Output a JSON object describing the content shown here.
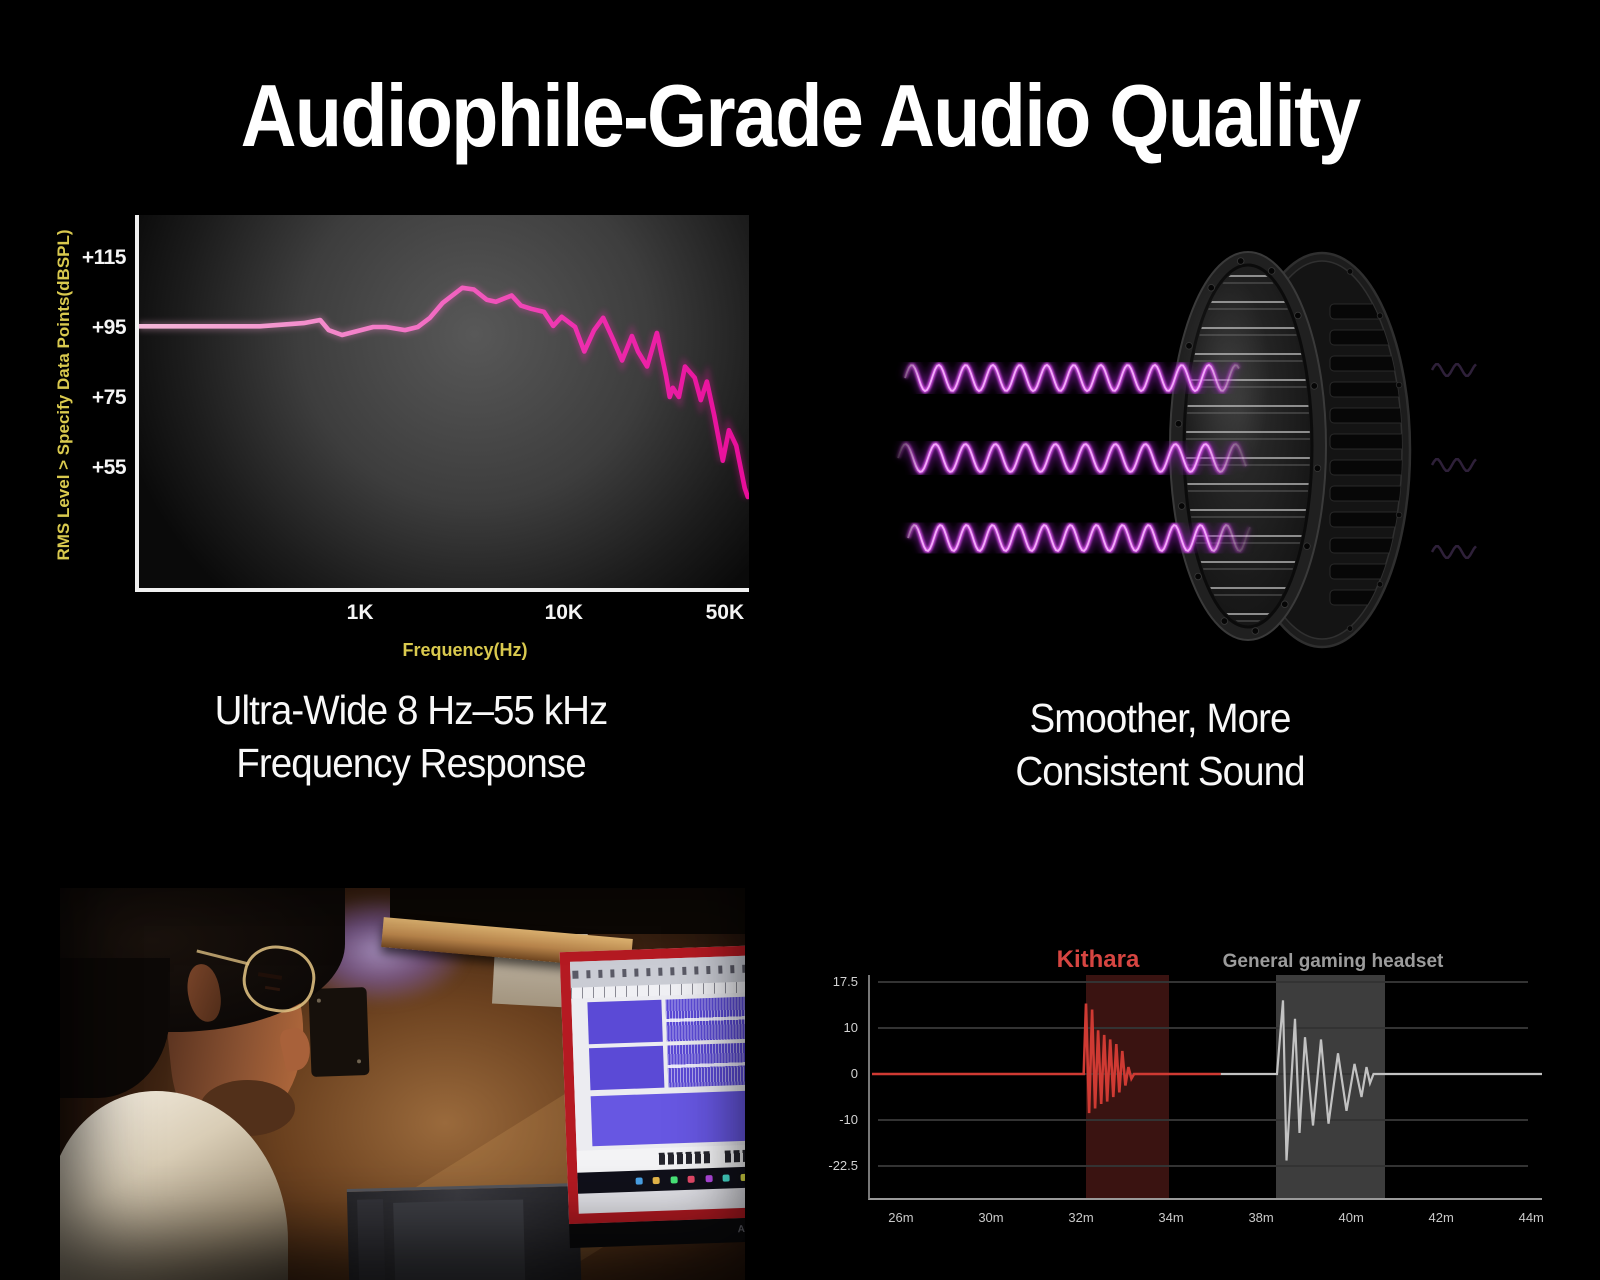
{
  "page": {
    "title": "Audiophile-Grade Audio Quality",
    "background": "#000000"
  },
  "captions": {
    "left": [
      "Ultra-Wide 8 Hz–55 kHz",
      "Frequency Response"
    ],
    "right": [
      "Smoother, More",
      "Consistent Sound"
    ]
  },
  "driver": {
    "wave_core": "#f2aaf8",
    "wave_mid": "#d44fe8",
    "wave_glow": "#8a1fb0"
  },
  "photo": {
    "monitor_logo": "ASUS"
  },
  "chart_data": [
    {
      "type": "line",
      "title": "",
      "xlabel": "Frequency(Hz)",
      "ylabel": "RMS Level > Specify Data Points(dBSPL)",
      "x_scale": "log",
      "grid": false,
      "axis_label_color": "#d9c94e",
      "line_gradient": [
        "#f4b8d8",
        "#f373c5",
        "#ee2fae",
        "#e80d9a"
      ],
      "ylim": [
        40,
        122
      ],
      "y_ticks": [
        {
          "label": "+115",
          "value": 115
        },
        {
          "label": "+95",
          "value": 95
        },
        {
          "label": "+75",
          "value": 75
        },
        {
          "label": "+55",
          "value": 55
        }
      ],
      "x_ticks": [
        {
          "label": "1K",
          "pos": 0.369
        },
        {
          "label": "10K",
          "pos": 0.703
        },
        {
          "label": "50K",
          "pos": 0.967
        }
      ],
      "series": [
        {
          "name": "frequency-response-dBSPL",
          "points": [
            [
              0.0,
              95.5
            ],
            [
              0.198,
              95.5
            ],
            [
              0.27,
              96.4
            ],
            [
              0.297,
              97.3
            ],
            [
              0.311,
              94.4
            ],
            [
              0.333,
              93.0
            ],
            [
              0.364,
              94.4
            ],
            [
              0.384,
              95.3
            ],
            [
              0.405,
              95.3
            ],
            [
              0.436,
              94.4
            ],
            [
              0.457,
              95.3
            ],
            [
              0.477,
              97.9
            ],
            [
              0.498,
              102.2
            ],
            [
              0.53,
              106.5
            ],
            [
              0.549,
              106.0
            ],
            [
              0.57,
              103.1
            ],
            [
              0.585,
              102.5
            ],
            [
              0.611,
              104.3
            ],
            [
              0.626,
              101.4
            ],
            [
              0.643,
              100.5
            ],
            [
              0.664,
              99.6
            ],
            [
              0.679,
              95.6
            ],
            [
              0.693,
              98.2
            ],
            [
              0.715,
              95.3
            ],
            [
              0.73,
              88.3
            ],
            [
              0.746,
              94.4
            ],
            [
              0.761,
              97.9
            ],
            [
              0.777,
              91.8
            ],
            [
              0.792,
              85.7
            ],
            [
              0.808,
              92.7
            ],
            [
              0.818,
              88.3
            ],
            [
              0.833,
              84.0
            ],
            [
              0.849,
              93.6
            ],
            [
              0.864,
              81.4
            ],
            [
              0.87,
              75.3
            ],
            [
              0.875,
              77.9
            ],
            [
              0.885,
              75.3
            ],
            [
              0.895,
              84.0
            ],
            [
              0.911,
              80.8
            ],
            [
              0.921,
              74.4
            ],
            [
              0.931,
              79.7
            ],
            [
              0.943,
              70.1
            ],
            [
              0.957,
              57.1
            ],
            [
              0.967,
              65.8
            ],
            [
              0.979,
              61.4
            ],
            [
              0.993,
              49.3
            ],
            [
              0.998,
              46.7
            ]
          ]
        }
      ]
    },
    {
      "type": "line",
      "title": "",
      "xlabel": "",
      "ylabel": "",
      "legend": [
        {
          "label": "Kithara",
          "color": "#d64541"
        },
        {
          "label": "General gaming headset",
          "color": "#9b9b9b"
        }
      ],
      "y_ticks": [
        {
          "label": "17.5",
          "value": 17.5
        },
        {
          "label": "10",
          "value": 10
        },
        {
          "label": "0",
          "value": 0
        },
        {
          "label": "-10",
          "value": -10
        },
        {
          "label": "-22.5",
          "value": -22.5
        }
      ],
      "x_ticks": [
        {
          "label": "26m",
          "pos": 0.049
        },
        {
          "label": "30m",
          "pos": 0.183
        },
        {
          "label": "32m",
          "pos": 0.317
        },
        {
          "label": "34m",
          "pos": 0.451
        },
        {
          "label": "38m",
          "pos": 0.585
        },
        {
          "label": "40m",
          "pos": 0.719
        },
        {
          "label": "42m",
          "pos": 0.853
        },
        {
          "label": "44m",
          "pos": 0.987
        }
      ],
      "bands": [
        {
          "name": "kithara-highlight",
          "color": "#3a1311",
          "start": 0.321,
          "end": 0.445
        },
        {
          "name": "general-highlight",
          "color": "#3d3d3d",
          "start": 0.604,
          "end": 0.766
        }
      ],
      "series": [
        {
          "name": "Kithara",
          "color": "#cf3a33",
          "width": 2.6,
          "points": [
            [
              0.003,
              0
            ],
            [
              0.318,
              0
            ],
            [
              0.3215,
              14
            ],
            [
              0.326,
              -8.5
            ],
            [
              0.3305,
              13
            ],
            [
              0.335,
              -7.5
            ],
            [
              0.3395,
              9.5
            ],
            [
              0.344,
              -6.5
            ],
            [
              0.3485,
              8.5
            ],
            [
              0.353,
              -6
            ],
            [
              0.3575,
              7.5
            ],
            [
              0.362,
              -5
            ],
            [
              0.3665,
              6.5
            ],
            [
              0.371,
              -4
            ],
            [
              0.3755,
              5
            ],
            [
              0.38,
              -2.5
            ],
            [
              0.3845,
              1.5
            ],
            [
              0.389,
              -1
            ],
            [
              0.393,
              0
            ],
            [
              0.522,
              0
            ]
          ]
        },
        {
          "name": "General gaming headset",
          "color": "#c2c2c2",
          "width": 2.2,
          "points": [
            [
              0.522,
              0
            ],
            [
              0.6056,
              0
            ],
            [
              0.6146,
              14.5
            ],
            [
              0.6198,
              -21
            ],
            [
              0.6324,
              11.5
            ],
            [
              0.6391,
              -13.5
            ],
            [
              0.6473,
              8
            ],
            [
              0.6592,
              -11.5
            ],
            [
              0.6711,
              7.5
            ],
            [
              0.6823,
              -11
            ],
            [
              0.6964,
              4.5
            ],
            [
              0.7091,
              -8
            ],
            [
              0.721,
              2.2
            ],
            [
              0.7314,
              -5
            ],
            [
              0.7388,
              1.5
            ],
            [
              0.744,
              -2
            ],
            [
              0.7492,
              0
            ],
            [
              1.0,
              0
            ]
          ]
        }
      ]
    }
  ]
}
